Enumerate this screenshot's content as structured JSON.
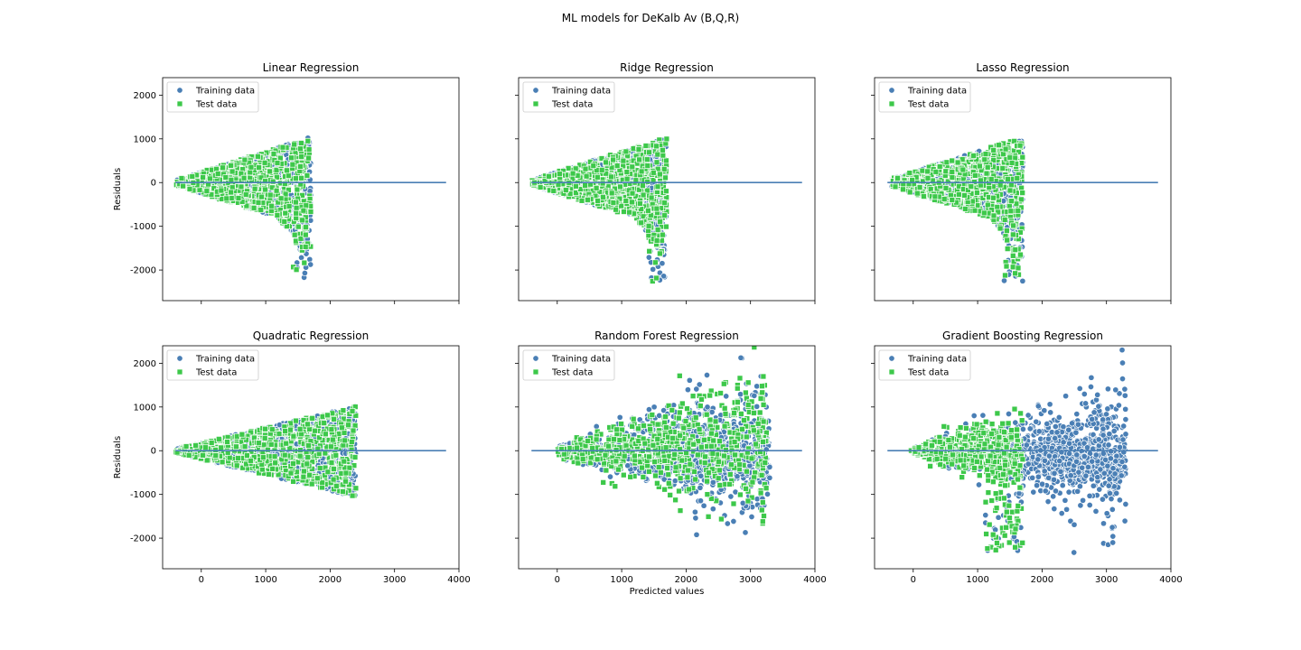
{
  "figure": {
    "suptitle": "ML models for DeKalb Av (B,Q,R)"
  },
  "colors": {
    "training": "#4a7fb5",
    "test": "#3dc84a",
    "zero_line": "#4a7fb5"
  },
  "chart_data": [
    {
      "type": "scatter",
      "title": "Linear Regression",
      "xlabel": "",
      "ylabel": "Residuals",
      "xlim": [
        -600,
        4000
      ],
      "ylim": [
        -2700,
        2400
      ],
      "xticks": [
        0,
        1000,
        2000,
        3000,
        4000
      ],
      "yticks": [
        -2000,
        -1000,
        0,
        1000,
        2000
      ],
      "show_xticklabels": false,
      "show_yticklabels": true,
      "zero_line": [
        -400,
        3800
      ],
      "legend": {
        "position": "upper left",
        "entries": [
          "Training data",
          "Test data"
        ]
      },
      "shape": "cone",
      "x_range": [
        -400,
        1700
      ],
      "train_extra": 0,
      "series": [
        {
          "name": "Training data",
          "marker": "circle",
          "description": "residual cone widening with prediction",
          "x_range": [
            -400,
            1700
          ],
          "y_range": [
            -2300,
            1200
          ]
        },
        {
          "name": "Test data",
          "marker": "square",
          "description": "residual cone widening with prediction",
          "x_range": [
            -400,
            1700
          ],
          "y_range": [
            -2400,
            1100
          ]
        }
      ]
    },
    {
      "type": "scatter",
      "title": "Ridge Regression",
      "xlabel": "",
      "ylabel": "",
      "xlim": [
        -600,
        4000
      ],
      "ylim": [
        -2700,
        2400
      ],
      "xticks": [
        0,
        1000,
        2000,
        3000,
        4000
      ],
      "yticks": [
        -2000,
        -1000,
        0,
        1000,
        2000
      ],
      "show_xticklabels": false,
      "show_yticklabels": false,
      "zero_line": [
        -400,
        3800
      ],
      "legend": {
        "position": "upper left",
        "entries": [
          "Training data",
          "Test data"
        ]
      },
      "shape": "cone",
      "x_range": [
        -400,
        1700
      ],
      "train_extra": 0,
      "series": [
        {
          "name": "Training data",
          "marker": "circle",
          "x_range": [
            -400,
            1700
          ],
          "y_range": [
            -2300,
            1200
          ]
        },
        {
          "name": "Test data",
          "marker": "square",
          "x_range": [
            -400,
            1700
          ],
          "y_range": [
            -2400,
            1100
          ]
        }
      ]
    },
    {
      "type": "scatter",
      "title": "Lasso Regression",
      "xlabel": "",
      "ylabel": "",
      "xlim": [
        -600,
        4000
      ],
      "ylim": [
        -2700,
        2400
      ],
      "xticks": [
        0,
        1000,
        2000,
        3000,
        4000
      ],
      "yticks": [
        -2000,
        -1000,
        0,
        1000,
        2000
      ],
      "show_xticklabels": false,
      "show_yticklabels": false,
      "zero_line": [
        -400,
        3800
      ],
      "legend": {
        "position": "upper left",
        "entries": [
          "Training data",
          "Test data"
        ]
      },
      "shape": "cone",
      "x_range": [
        -350,
        1700
      ],
      "train_extra": 0,
      "series": [
        {
          "name": "Training data",
          "marker": "circle",
          "x_range": [
            -350,
            1700
          ],
          "y_range": [
            -2300,
            1200
          ]
        },
        {
          "name": "Test data",
          "marker": "square",
          "x_range": [
            -350,
            1700
          ],
          "y_range": [
            -2400,
            1100
          ]
        }
      ]
    },
    {
      "type": "scatter",
      "title": "Quadratic Regression",
      "xlabel": "",
      "ylabel": "Residuals",
      "xlim": [
        -600,
        4000
      ],
      "ylim": [
        -2700,
        2400
      ],
      "xticks": [
        0,
        1000,
        2000,
        3000,
        4000
      ],
      "yticks": [
        -2000,
        -1000,
        0,
        1000,
        2000
      ],
      "show_xticklabels": true,
      "show_yticklabels": true,
      "zero_line": [
        -400,
        3800
      ],
      "legend": {
        "position": "upper left",
        "entries": [
          "Training data",
          "Test data"
        ]
      },
      "shape": "quad",
      "x_range": [
        -400,
        2400
      ],
      "train_extra": 0,
      "series": [
        {
          "name": "Training data",
          "marker": "circle",
          "x_range": [
            -400,
            2400
          ],
          "y_range": [
            -1850,
            1550
          ]
        },
        {
          "name": "Test data",
          "marker": "square",
          "x_range": [
            -400,
            2400
          ],
          "y_range": [
            -2150,
            1550
          ]
        }
      ]
    },
    {
      "type": "scatter",
      "title": "Random Forest Regression",
      "xlabel": "Predicted values",
      "ylabel": "",
      "xlim": [
        -600,
        4000
      ],
      "ylim": [
        -2700,
        2400
      ],
      "xticks": [
        0,
        1000,
        2000,
        3000,
        4000
      ],
      "yticks": [
        -2000,
        -1000,
        0,
        1000,
        2000
      ],
      "show_xticklabels": true,
      "show_yticklabels": false,
      "zero_line": [
        -400,
        3800
      ],
      "legend": {
        "position": "upper left",
        "entries": [
          "Training data",
          "Test data"
        ]
      },
      "shape": "rf",
      "x_range": [
        0,
        3300
      ],
      "train_extra": 80,
      "series": [
        {
          "name": "Training data",
          "marker": "circle",
          "x_range": [
            0,
            3300
          ],
          "y_range": [
            -800,
            300
          ]
        },
        {
          "name": "Test data",
          "marker": "square",
          "x_range": [
            0,
            3250
          ],
          "y_range": [
            -2500,
            2150
          ]
        }
      ]
    },
    {
      "type": "scatter",
      "title": "Gradient Boosting Regression",
      "xlabel": "",
      "ylabel": "",
      "xlim": [
        -600,
        4000
      ],
      "ylim": [
        -2700,
        2400
      ],
      "xticks": [
        0,
        1000,
        2000,
        3000,
        4000
      ],
      "yticks": [
        -2000,
        -1000,
        0,
        1000,
        2000
      ],
      "show_xticklabels": true,
      "show_yticklabels": false,
      "zero_line": [
        -400,
        3800
      ],
      "legend": {
        "position": "upper left",
        "entries": [
          "Training data",
          "Test data"
        ]
      },
      "shape": "gb",
      "x_range": [
        -50,
        3300
      ],
      "train_extra": 130,
      "series": [
        {
          "name": "Training data",
          "marker": "circle",
          "x_range": [
            -50,
            3300
          ],
          "y_range": [
            -850,
            1000
          ]
        },
        {
          "name": "Test data",
          "marker": "square",
          "x_range": [
            -50,
            1700
          ],
          "y_range": [
            -2350,
            1200
          ]
        }
      ]
    }
  ]
}
